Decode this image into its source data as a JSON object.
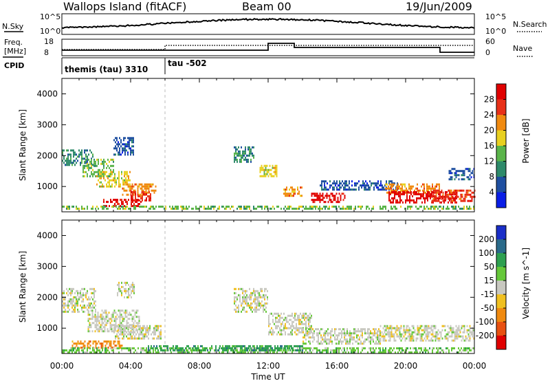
{
  "header": {
    "station": "Wallops Island (fitACF)",
    "beam": "Beam 00",
    "date": "19/Jun/2009"
  },
  "strip": {
    "nsky_label": "N.Sky",
    "nsky_ticks": [
      "10^5",
      "10^0"
    ],
    "nsearch_label": "N.Search",
    "nsearch_ticks": [
      "10^5",
      "10^0"
    ],
    "freq_label_1": "Freq.",
    "freq_label_2": "[MHz]",
    "freq_ticks": [
      "18",
      "8"
    ],
    "nave_label": "Nave",
    "nave_ticks": [
      "60",
      "0"
    ],
    "cpid_label": "CPID",
    "cpid_segments": [
      {
        "start": 0,
        "label": "themis (tau) 3310"
      },
      {
        "start": 6,
        "label": "tau -502"
      }
    ]
  },
  "chart_data": [
    {
      "type": "heatmap",
      "name": "power",
      "ylabel": "Slant Range [km]",
      "xlabel": "",
      "yticks": [
        "1000",
        "2000",
        "3000",
        "4000"
      ],
      "ylim": [
        180,
        4500
      ],
      "xlim": [
        0,
        24
      ],
      "colorbar_label": "Power [dB]",
      "colorbar_ticks": [
        "4",
        "8",
        "12",
        "16",
        "20",
        "24",
        "28"
      ],
      "colors": [
        "#0a1ee6",
        "#1f4fa0",
        "#2e8a6a",
        "#5ab44a",
        "#e8d020",
        "#f08a10",
        "#e83018",
        "#e00000"
      ],
      "echo_regions": [
        {
          "t0": 0.0,
          "t1": 1.8,
          "r0": 1700,
          "r1": 2200,
          "level": 2
        },
        {
          "t0": 1.2,
          "t1": 3.0,
          "r0": 1300,
          "r1": 1900,
          "level": 3
        },
        {
          "t0": 2.0,
          "t1": 4.0,
          "r0": 1000,
          "r1": 1500,
          "level": 4
        },
        {
          "t0": 3.5,
          "t1": 5.5,
          "r0": 700,
          "r1": 1100,
          "level": 5
        },
        {
          "t0": 4.0,
          "t1": 5.2,
          "r0": 550,
          "r1": 850,
          "level": 6
        },
        {
          "t0": 2.4,
          "t1": 4.6,
          "r0": 380,
          "r1": 600,
          "level": 7
        },
        {
          "t0": 0.0,
          "t1": 24.0,
          "r0": 250,
          "r1": 380,
          "level": 3
        },
        {
          "t0": 3.0,
          "t1": 4.2,
          "r0": 2000,
          "r1": 2600,
          "level": 1
        },
        {
          "t0": 10.0,
          "t1": 11.2,
          "r0": 1800,
          "r1": 2300,
          "level": 2
        },
        {
          "t0": 11.5,
          "t1": 12.5,
          "r0": 1300,
          "r1": 1700,
          "level": 4
        },
        {
          "t0": 12.8,
          "t1": 14.0,
          "r0": 700,
          "r1": 1000,
          "level": 5
        },
        {
          "t0": 14.5,
          "t1": 16.5,
          "r0": 500,
          "r1": 800,
          "level": 7
        },
        {
          "t0": 15.0,
          "t1": 19.5,
          "r0": 900,
          "r1": 1200,
          "level": 1
        },
        {
          "t0": 18.8,
          "t1": 22.0,
          "r0": 800,
          "r1": 1100,
          "level": 5
        },
        {
          "t0": 19.0,
          "t1": 23.0,
          "r0": 500,
          "r1": 850,
          "level": 7
        },
        {
          "t0": 21.5,
          "t1": 24.0,
          "r0": 550,
          "r1": 900,
          "level": 6
        },
        {
          "t0": 22.5,
          "t1": 24.0,
          "r0": 1200,
          "r1": 1600,
          "level": 1
        }
      ]
    },
    {
      "type": "heatmap",
      "name": "velocity",
      "ylabel": "Slant Range [km]",
      "xlabel": "Time UT",
      "xticks": [
        "00:00",
        "04:00",
        "08:00",
        "12:00",
        "16:00",
        "20:00",
        "00:00"
      ],
      "yticks": [
        "1000",
        "2000",
        "3000",
        "4000"
      ],
      "ylim": [
        180,
        4500
      ],
      "xlim": [
        0,
        24
      ],
      "colorbar_label": "Velocity [m s^-1]",
      "colorbar_ticks": [
        "200",
        "100",
        "50",
        "15",
        "-15",
        "-50",
        "-100",
        "-200"
      ],
      "colors": [
        "#1a2ec8",
        "#2a6a8a",
        "#2ea050",
        "#66c83a",
        "#c8c8c0",
        "#f0c020",
        "#f08a10",
        "#e85010",
        "#e00000"
      ],
      "echo_regions": [
        {
          "t0": 0.0,
          "t1": 2.0,
          "r0": 1500,
          "r1": 2300,
          "level": 4
        },
        {
          "t0": 1.5,
          "t1": 4.5,
          "r0": 900,
          "r1": 1600,
          "level": 4
        },
        {
          "t0": 3.0,
          "t1": 5.8,
          "r0": 650,
          "r1": 1100,
          "level": 4
        },
        {
          "t0": 0.5,
          "t1": 3.5,
          "r0": 350,
          "r1": 600,
          "level": 6
        },
        {
          "t0": 0.0,
          "t1": 24.0,
          "r0": 220,
          "r1": 380,
          "level": 3
        },
        {
          "t0": 3.2,
          "t1": 4.2,
          "r0": 2000,
          "r1": 2500,
          "level": 4
        },
        {
          "t0": 10.0,
          "t1": 12.0,
          "r0": 1500,
          "r1": 2300,
          "level": 4
        },
        {
          "t0": 12.0,
          "t1": 14.5,
          "r0": 800,
          "r1": 1500,
          "level": 4
        },
        {
          "t0": 14.0,
          "t1": 18.5,
          "r0": 500,
          "r1": 1000,
          "level": 4
        },
        {
          "t0": 18.5,
          "t1": 24.0,
          "r0": 600,
          "r1": 1100,
          "level": 4
        },
        {
          "t0": 5.0,
          "t1": 14.0,
          "r0": 300,
          "r1": 450,
          "level": 2
        }
      ]
    }
  ]
}
